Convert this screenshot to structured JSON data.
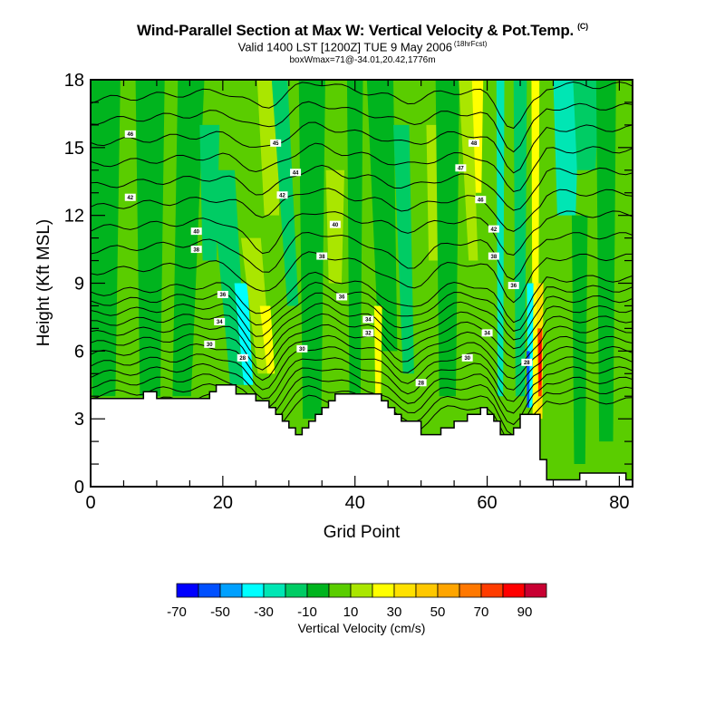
{
  "header": {
    "title": "Wind-Parallel Section at Max W: Vertical Velocity & Pot.Temp.",
    "title_suffix": "(C)",
    "valid_line": "Valid 1400 LST [1200Z] TUE 9 May 2006",
    "forecast": "(18hrFcst)",
    "box_line": "boxWmax=71@-34.01,20.42,1776m"
  },
  "chart_data": {
    "type": "heatmap",
    "title": "Wind-Parallel Section at Max W: Vertical Velocity & Pot.Temp.",
    "xlabel": "Grid Point",
    "ylabel": "Height (Kft MSL)",
    "xlim": [
      0,
      82
    ],
    "ylim": [
      0,
      18
    ],
    "xticks": [
      0,
      20,
      40,
      60,
      80
    ],
    "xtick_labels": [
      "0",
      "20",
      "40",
      "60",
      "80"
    ],
    "x_minor_step": 5,
    "yticks": [
      0,
      3,
      6,
      9,
      12,
      15,
      18
    ],
    "ytick_labels": [
      "0",
      "3",
      "6",
      "9",
      "12",
      "15",
      "18"
    ],
    "y_minor_step": 1,
    "grid": false,
    "colorbar": {
      "title": "Vertical Velocity (cm/s)",
      "placement": "bottom",
      "colors": [
        "#0000ff",
        "#0050ff",
        "#00a0ff",
        "#00ffff",
        "#00e6b4",
        "#00cc64",
        "#00b41e",
        "#5acd00",
        "#aae600",
        "#ffff00",
        "#ffe100",
        "#ffc800",
        "#ffa500",
        "#ff7800",
        "#ff3c00",
        "#ff0000",
        "#c80032"
      ],
      "tick_values": [
        -70,
        -50,
        -30,
        -10,
        10,
        30,
        50,
        70,
        90
      ],
      "tick_labels": [
        "-70",
        "-50",
        "-30",
        "-10",
        "10",
        "30",
        "50",
        "70",
        "90"
      ]
    },
    "terrain_profile": {
      "description_units": "grid point vs Kft MSL",
      "x": [
        0,
        8,
        8,
        10,
        10,
        18,
        18,
        19,
        19,
        22,
        22,
        25,
        25,
        27,
        27,
        28,
        28,
        29,
        29,
        30,
        30,
        31,
        31,
        32,
        32,
        33,
        33,
        34,
        34,
        35,
        35,
        36,
        36,
        37,
        37,
        38,
        38,
        39,
        39,
        40,
        40,
        41,
        41,
        42,
        42,
        44,
        44,
        45,
        45,
        46,
        46,
        47,
        47,
        50,
        50,
        53,
        53,
        55,
        55,
        57,
        57,
        59,
        59,
        60,
        60,
        61,
        61,
        62,
        62,
        63,
        63,
        64,
        64,
        65,
        65,
        67,
        67,
        68,
        68,
        69,
        69,
        74,
        74,
        81,
        81,
        82
      ],
      "y": [
        3.9,
        3.9,
        4.2,
        4.2,
        3.9,
        3.9,
        4.2,
        4.2,
        4.5,
        4.5,
        4.1,
        4.1,
        3.8,
        3.8,
        3.5,
        3.5,
        3.2,
        3.2,
        2.9,
        2.9,
        2.6,
        2.6,
        2.3,
        2.3,
        2.6,
        2.6,
        2.9,
        2.9,
        3.2,
        3.2,
        3.5,
        3.5,
        3.8,
        3.8,
        4.1,
        4.1,
        4.1,
        4.1,
        4.1,
        4.1,
        4.1,
        4.1,
        4.1,
        4.1,
        4.1,
        4.1,
        3.8,
        3.8,
        3.5,
        3.5,
        3.2,
        3.2,
        2.9,
        2.9,
        2.3,
        2.3,
        2.6,
        2.6,
        2.9,
        2.9,
        3.2,
        3.2,
        3.5,
        3.5,
        3.2,
        3.2,
        2.9,
        2.9,
        2.3,
        2.3,
        2.3,
        2.3,
        2.6,
        2.6,
        3.2,
        3.2,
        3.2,
        3.2,
        1.2,
        1.2,
        0.3,
        0.3,
        0.6,
        0.6,
        0.3,
        0.3
      ]
    },
    "contour_field": "Potential Temperature (C)",
    "contour_labels": [
      {
        "x": 6,
        "y": 15.6,
        "text": "46"
      },
      {
        "x": 6,
        "y": 12.8,
        "text": "42"
      },
      {
        "x": 16,
        "y": 11.3,
        "text": "40"
      },
      {
        "x": 16,
        "y": 10.5,
        "text": "38"
      },
      {
        "x": 20,
        "y": 8.5,
        "text": "36"
      },
      {
        "x": 19.5,
        "y": 7.3,
        "text": "34"
      },
      {
        "x": 18,
        "y": 6.3,
        "text": "30"
      },
      {
        "x": 23,
        "y": 5.7,
        "text": "28"
      },
      {
        "x": 28,
        "y": 15.2,
        "text": "45"
      },
      {
        "x": 31,
        "y": 13.9,
        "text": "44"
      },
      {
        "x": 29,
        "y": 12.9,
        "text": "42"
      },
      {
        "x": 37,
        "y": 11.6,
        "text": "40"
      },
      {
        "x": 35,
        "y": 10.2,
        "text": "38"
      },
      {
        "x": 38,
        "y": 8.4,
        "text": "36"
      },
      {
        "x": 32,
        "y": 6.1,
        "text": "30"
      },
      {
        "x": 42,
        "y": 7.4,
        "text": "34"
      },
      {
        "x": 42,
        "y": 6.8,
        "text": "32"
      },
      {
        "x": 50,
        "y": 4.6,
        "text": "28"
      },
      {
        "x": 58,
        "y": 15.2,
        "text": "48"
      },
      {
        "x": 56,
        "y": 14.1,
        "text": "47"
      },
      {
        "x": 59,
        "y": 12.7,
        "text": "46"
      },
      {
        "x": 61,
        "y": 11.4,
        "text": "42"
      },
      {
        "x": 61,
        "y": 10.2,
        "text": "38"
      },
      {
        "x": 64,
        "y": 8.9,
        "text": "36"
      },
      {
        "x": 60,
        "y": 6.8,
        "text": "34"
      },
      {
        "x": 57,
        "y": 5.7,
        "text": "30"
      },
      {
        "x": 66,
        "y": 5.5,
        "text": "28"
      }
    ]
  }
}
